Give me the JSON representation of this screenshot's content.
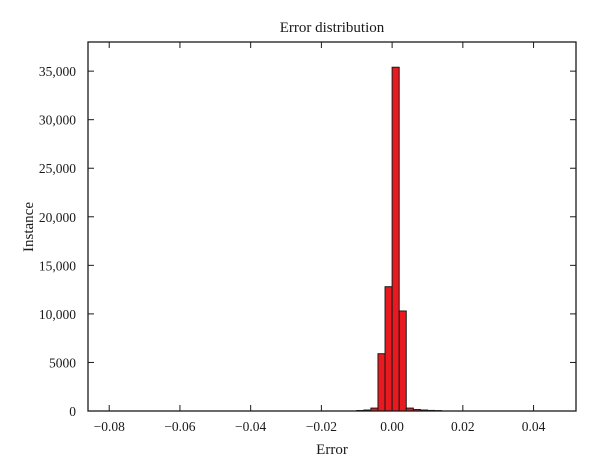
{
  "chart_data": {
    "type": "bar",
    "title": "Error distribution",
    "xlabel": "Error",
    "ylabel": "Instance",
    "xlim": [
      -0.086,
      0.052
    ],
    "ylim": [
      0,
      38000
    ],
    "x_ticks": [
      -0.08,
      -0.06,
      -0.04,
      -0.02,
      0.0,
      0.02,
      0.04
    ],
    "x_tick_labels": [
      "−0.08",
      "−0.06",
      "−0.04",
      "−0.02",
      "0.00",
      "0.02",
      "0.04"
    ],
    "y_ticks": [
      0,
      5000,
      10000,
      15000,
      20000,
      25000,
      30000,
      35000
    ],
    "y_tick_labels": [
      "0",
      "5000",
      "10,000",
      "15,000",
      "20,000",
      "25,000",
      "30,000",
      "35,000"
    ],
    "bin_width": 0.002,
    "bins": [
      {
        "x": -0.01,
        "count": 50
      },
      {
        "x": -0.008,
        "count": 100
      },
      {
        "x": -0.006,
        "count": 300
      },
      {
        "x": -0.004,
        "count": 5900
      },
      {
        "x": -0.002,
        "count": 12800
      },
      {
        "x": 0.0,
        "count": 35400
      },
      {
        "x": 0.002,
        "count": 10300
      },
      {
        "x": 0.004,
        "count": 300
      },
      {
        "x": 0.006,
        "count": 150
      },
      {
        "x": 0.008,
        "count": 100
      },
      {
        "x": 0.01,
        "count": 60
      },
      {
        "x": 0.012,
        "count": 40
      }
    ],
    "bar_color": "#e8191f",
    "edge_color": "#1a1a1a",
    "grid": false
  }
}
